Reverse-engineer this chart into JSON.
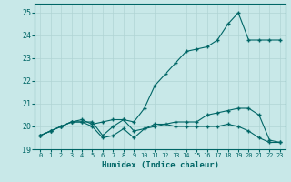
{
  "xlabel": "Humidex (Indice chaleur)",
  "background_color": "#c8e8e8",
  "grid_color": "#b0d4d4",
  "line_color": "#006666",
  "xlim": [
    -0.5,
    23.5
  ],
  "ylim": [
    19.0,
    25.4
  ],
  "yticks": [
    19,
    20,
    21,
    22,
    23,
    24,
    25
  ],
  "xticks": [
    0,
    1,
    2,
    3,
    4,
    5,
    6,
    7,
    8,
    9,
    10,
    11,
    12,
    13,
    14,
    15,
    16,
    17,
    18,
    19,
    20,
    21,
    22,
    23
  ],
  "series": [
    [
      19.6,
      19.8,
      20.0,
      20.2,
      20.3,
      20.1,
      20.2,
      20.3,
      20.3,
      20.2,
      20.8,
      21.8,
      22.3,
      22.8,
      23.3,
      23.4,
      23.5,
      23.8,
      24.5,
      25.0,
      23.8,
      23.8,
      23.8,
      23.8
    ],
    [
      19.6,
      19.8,
      20.0,
      20.2,
      20.2,
      20.2,
      19.6,
      20.0,
      20.3,
      19.8,
      19.9,
      20.1,
      20.1,
      20.2,
      20.2,
      20.2,
      20.5,
      20.6,
      20.7,
      20.8,
      20.8,
      20.5,
      19.4,
      19.3
    ],
    [
      19.6,
      19.8,
      20.0,
      20.2,
      20.2,
      20.0,
      19.5,
      19.6,
      19.9,
      19.5,
      19.9,
      20.0,
      20.1,
      20.0,
      20.0,
      20.0,
      20.0,
      20.0,
      20.1,
      20.0,
      19.8,
      19.5,
      19.3,
      19.3
    ]
  ]
}
